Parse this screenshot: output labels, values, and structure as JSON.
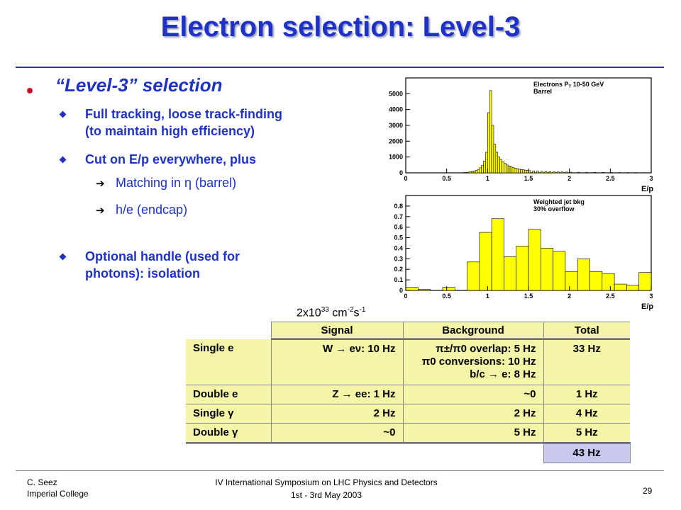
{
  "title": "Electron selection: Level-3",
  "bullets": {
    "level1": "“Level-3” selection",
    "items": [
      {
        "text1": "Full tracking, loose track-finding",
        "text2": "(to maintain high efficiency)"
      },
      {
        "text1": "Cut on E/p everywhere, plus"
      }
    ],
    "sub_items": [
      "Matching in η (barrel)",
      "h/e (endcap)"
    ],
    "optional": {
      "text1": "Optional handle (used for",
      "text2": "photons): isolation"
    }
  },
  "chart_data": [
    {
      "type": "bar",
      "title": "Electrons PT 10-50 GeV Barrel",
      "legend_line1": "Electrons P",
      "legend_sub": "T",
      "legend_line1_rest": " 10-50 GeV",
      "legend_line2": "Barrel",
      "xlabel": "E/p",
      "xlim": [
        0,
        3
      ],
      "ylim": [
        0,
        6000
      ],
      "xticks": [
        "0",
        "0.5",
        "1",
        "1.5",
        "2",
        "2.5",
        "3"
      ],
      "yticks": [
        "0",
        "1000",
        "2000",
        "3000",
        "4000",
        "5000"
      ],
      "bin_width": 0.025,
      "x": [
        0.7,
        0.725,
        0.75,
        0.775,
        0.8,
        0.825,
        0.85,
        0.875,
        0.9,
        0.925,
        0.95,
        0.975,
        1.0,
        1.025,
        1.05,
        1.075,
        1.1,
        1.125,
        1.15,
        1.175,
        1.2,
        1.225,
        1.25,
        1.275,
        1.3,
        1.325,
        1.35,
        1.375,
        1.4,
        1.425,
        1.45,
        1.475,
        1.5,
        1.55,
        1.6,
        1.65,
        1.7,
        1.75,
        1.8,
        1.85,
        1.9,
        1.95,
        2.0,
        2.1,
        2.2,
        2.3,
        2.4,
        2.5,
        2.6,
        2.7,
        2.8,
        2.9
      ],
      "values": [
        20,
        30,
        40,
        60,
        80,
        110,
        150,
        220,
        320,
        480,
        750,
        1300,
        3800,
        5200,
        3000,
        1800,
        1300,
        1000,
        850,
        700,
        600,
        500,
        430,
        380,
        330,
        300,
        260,
        230,
        210,
        190,
        170,
        150,
        140,
        120,
        105,
        95,
        85,
        75,
        65,
        60,
        55,
        50,
        45,
        40,
        35,
        30,
        28,
        25,
        22,
        20,
        18,
        15
      ]
    },
    {
      "type": "bar",
      "title": "Weighted jet bkg 30% overflow",
      "legend_line1": "Weighted jet bkg",
      "legend_line2": "30% overflow",
      "xlabel": "E/p",
      "xlim": [
        0,
        3
      ],
      "ylim": [
        0,
        0.9
      ],
      "xticks": [
        "0",
        "0.5",
        "1",
        "1.5",
        "2",
        "2.5",
        "3"
      ],
      "yticks": [
        "0",
        "0.1",
        "0.2",
        "0.3",
        "0.4",
        "0.5",
        "0.6",
        "0.7",
        "0.8"
      ],
      "bin_width": 0.15,
      "x": [
        0.0,
        0.15,
        0.3,
        0.45,
        0.6,
        0.75,
        0.9,
        1.05,
        1.2,
        1.35,
        1.5,
        1.65,
        1.8,
        1.95,
        2.1,
        2.25,
        2.4,
        2.55,
        2.7,
        2.85
      ],
      "values": [
        0.03,
        0.01,
        0.0,
        0.03,
        0.0,
        0.27,
        0.55,
        0.68,
        0.32,
        0.42,
        0.58,
        0.4,
        0.37,
        0.18,
        0.3,
        0.18,
        0.16,
        0.06,
        0.05,
        0.17
      ]
    }
  ],
  "lumi": {
    "base": "2x10",
    "exp1": "33",
    "unit1": " cm",
    "exp2": "-2",
    "unit2": "s",
    "exp3": "-1"
  },
  "table": {
    "headers": [
      "",
      "Signal",
      "Background",
      "Total"
    ],
    "rows": [
      {
        "label": "Single e",
        "signal": "W → eν: 10 Hz",
        "background": [
          "π±/π0 overlap: 5 Hz",
          "π0 conversions: 10 Hz",
          "b/c → e: 8 Hz"
        ],
        "total": "33 Hz"
      },
      {
        "label": "Double e",
        "signal": "Z → ee:  1 Hz",
        "background": [
          "~0"
        ],
        "total": "1 Hz"
      },
      {
        "label": "Single γ",
        "signal": "2 Hz",
        "background": [
          "2 Hz"
        ],
        "total": "4 Hz"
      },
      {
        "label": "Double γ",
        "signal": "~0",
        "background": [
          "5 Hz"
        ],
        "total": "5 Hz"
      }
    ],
    "grand_total": "43 Hz"
  },
  "footer": {
    "author": "C. Seez",
    "institution": "Imperial College",
    "conference": "IV International  Symposium on LHC Physics and Detectors",
    "dates": "1st - 3rd May 2003",
    "page": "29"
  },
  "colors": {
    "title": "#1e32c8",
    "bullet": "#c8102e",
    "hist_fill": "#ffff00",
    "table_bg": "#f5f5a8",
    "total_bg": "#c8c8f0"
  }
}
